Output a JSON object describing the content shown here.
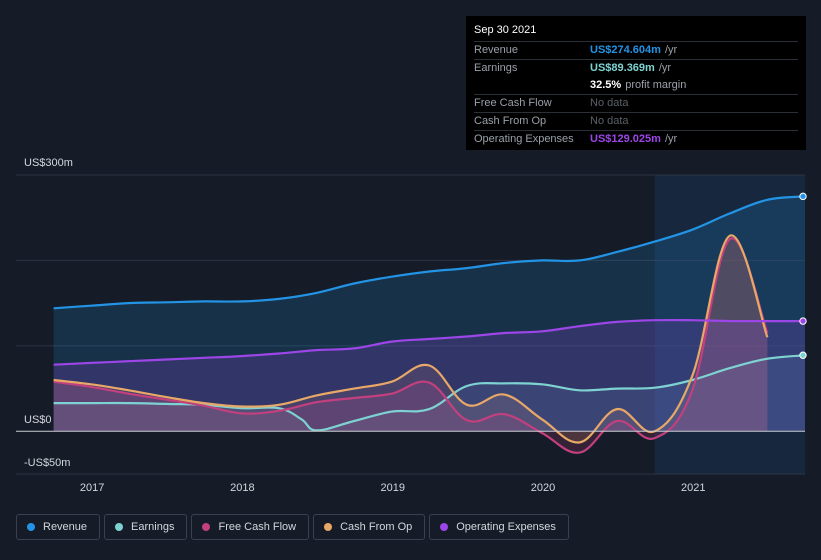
{
  "chart_data": {
    "type": "area",
    "title": "",
    "xlabel": "",
    "ylabel": "",
    "ylim": [
      -50,
      300
    ],
    "x_ticks": [
      "2017",
      "2018",
      "2019",
      "2020",
      "2021"
    ],
    "y_tick_labels": {
      "top": "US$300m",
      "zero": "US$0",
      "bottom": "-US$50m"
    },
    "highlight_start": 2020.75,
    "series": [
      {
        "name": "Revenue",
        "color": "#2394e5",
        "x": [
          2016.75,
          2017.0,
          2017.25,
          2017.5,
          2017.75,
          2018.0,
          2018.25,
          2018.5,
          2018.75,
          2019.0,
          2019.25,
          2019.5,
          2019.75,
          2020.0,
          2020.25,
          2020.5,
          2020.75,
          2021.0,
          2021.25,
          2021.5,
          2021.75
        ],
        "values": [
          144,
          147,
          150,
          151,
          152,
          152,
          155,
          162,
          173,
          181,
          187,
          191,
          197,
          200,
          200,
          210,
          222,
          236,
          255,
          271,
          275
        ]
      },
      {
        "name": "Earnings",
        "color": "#7ed3d2",
        "x": [
          2016.75,
          2017.0,
          2017.25,
          2017.5,
          2017.75,
          2018.0,
          2018.25,
          2018.4,
          2018.5,
          2018.75,
          2019.0,
          2019.25,
          2019.5,
          2019.75,
          2020.0,
          2020.25,
          2020.5,
          2020.75,
          2021.0,
          2021.25,
          2021.5,
          2021.75
        ],
        "values": [
          33,
          33,
          33,
          32,
          31,
          27,
          27,
          14,
          1,
          12,
          23,
          26,
          53,
          56,
          55,
          48,
          50,
          51,
          60,
          74,
          85,
          89
        ]
      },
      {
        "name": "Free Cash Flow",
        "color": "#c3407f",
        "x": [
          2016.75,
          2017.0,
          2017.25,
          2017.5,
          2017.75,
          2018.0,
          2018.25,
          2018.5,
          2018.75,
          2019.0,
          2019.25,
          2019.5,
          2019.75,
          2020.0,
          2020.25,
          2020.5,
          2020.75,
          2021.0,
          2021.25,
          2021.5
        ],
        "values": [
          58,
          52,
          44,
          37,
          30,
          21,
          24,
          34,
          39,
          44,
          57,
          13,
          20,
          -2,
          -25,
          12,
          -8,
          48,
          225,
          115
        ]
      },
      {
        "name": "Cash From Op",
        "color": "#e8a867",
        "x": [
          2016.75,
          2017.0,
          2017.25,
          2017.5,
          2017.75,
          2018.0,
          2018.25,
          2018.5,
          2018.75,
          2019.0,
          2019.25,
          2019.5,
          2019.75,
          2020.0,
          2020.25,
          2020.5,
          2020.75,
          2021.0,
          2021.25,
          2021.5
        ],
        "values": [
          60,
          55,
          48,
          40,
          33,
          29,
          31,
          42,
          50,
          58,
          77,
          31,
          43,
          14,
          -13,
          26,
          0,
          65,
          229,
          110
        ]
      },
      {
        "name": "Operating Expenses",
        "color": "#9d46e8",
        "x": [
          2016.75,
          2017.0,
          2017.25,
          2017.5,
          2017.75,
          2018.0,
          2018.25,
          2018.5,
          2018.75,
          2019.0,
          2019.25,
          2019.5,
          2019.75,
          2020.0,
          2020.25,
          2020.5,
          2020.75,
          2021.0,
          2021.25,
          2021.5,
          2021.75
        ],
        "values": [
          78,
          80,
          82,
          84,
          86,
          88,
          91,
          95,
          97,
          105,
          108,
          111,
          115,
          117,
          123,
          128,
          130,
          130,
          129,
          129,
          129
        ]
      }
    ]
  },
  "tooltip": {
    "date": "Sep 30 2021",
    "rows": {
      "revenue": {
        "label": "Revenue",
        "value": "US$274.604m",
        "unit": "/yr",
        "color": "#2394e5"
      },
      "earnings": {
        "label": "Earnings",
        "value": "US$89.369m",
        "unit": "/yr",
        "color": "#7ed3d2"
      },
      "margin": {
        "value": "32.5%",
        "unit": "profit margin"
      },
      "fcf": {
        "label": "Free Cash Flow",
        "value": "No data"
      },
      "cfo": {
        "label": "Cash From Op",
        "value": "No data"
      },
      "opex": {
        "label": "Operating Expenses",
        "value": "US$129.025m",
        "unit": "/yr",
        "color": "#9d46e8"
      }
    }
  },
  "legend": [
    {
      "label": "Revenue",
      "color": "#2394e5"
    },
    {
      "label": "Earnings",
      "color": "#7ed3d2"
    },
    {
      "label": "Free Cash Flow",
      "color": "#c3407f"
    },
    {
      "label": "Cash From Op",
      "color": "#e8a867"
    },
    {
      "label": "Operating Expenses",
      "color": "#9d46e8"
    }
  ]
}
